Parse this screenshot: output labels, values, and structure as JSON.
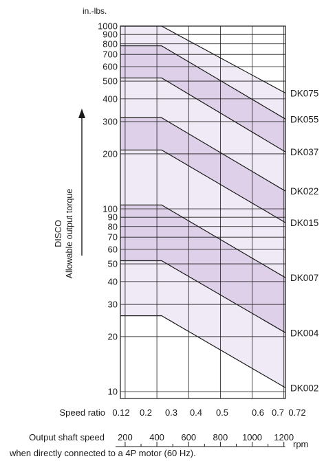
{
  "chart_data": {
    "type": "line",
    "title": "",
    "y_unit": "in.-lbs.",
    "ylabel_line1": "DISCO",
    "ylabel_line2": "Allowable output torque",
    "y_scale": "log",
    "ylim": [
      10,
      1000
    ],
    "y_ticks": [
      10,
      20,
      30,
      40,
      50,
      60,
      70,
      80,
      90,
      100,
      200,
      300,
      400,
      500,
      600,
      700,
      800,
      900,
      1000
    ],
    "x_label_ratio": "Speed ratio",
    "x_ratio_ticks": [
      "0.12",
      "0.2",
      "0.3",
      "0.4",
      "0.5",
      "0.6",
      "0.7",
      "0.72"
    ],
    "x_label_speed": "Output shaft speed",
    "x_speed_ticks": [
      200,
      400,
      600,
      800,
      1000,
      1200
    ],
    "x_speed_unit": "rpm",
    "x_note": "when directly connected to a 4P motor (60 Hz).",
    "xlim": [
      170,
      1210
    ],
    "grid": true,
    "series": [
      {
        "name": "DK075",
        "points": [
          [
            170,
            1000
          ],
          [
            430,
            1000
          ],
          [
            1210,
            430
          ]
        ]
      },
      {
        "name": "DK055",
        "points": [
          [
            170,
            780
          ],
          [
            430,
            780
          ],
          [
            1210,
            310
          ]
        ]
      },
      {
        "name": "DK037",
        "points": [
          [
            170,
            520
          ],
          [
            430,
            520
          ],
          [
            1210,
            205
          ]
        ]
      },
      {
        "name": "DK022",
        "points": [
          [
            170,
            315
          ],
          [
            430,
            315
          ],
          [
            1210,
            125
          ]
        ]
      },
      {
        "name": "DK015",
        "points": [
          [
            170,
            210
          ],
          [
            430,
            210
          ],
          [
            1210,
            84
          ]
        ]
      },
      {
        "name": "DK007",
        "points": [
          [
            170,
            105
          ],
          [
            430,
            105
          ],
          [
            1210,
            42
          ]
        ]
      },
      {
        "name": "DK004",
        "points": [
          [
            170,
            52
          ],
          [
            430,
            52
          ],
          [
            1210,
            21
          ]
        ]
      },
      {
        "name": "DK002",
        "points": [
          [
            170,
            26
          ],
          [
            430,
            26
          ],
          [
            1210,
            10.5
          ]
        ]
      }
    ],
    "fill_light": "#efeaf5",
    "fill_dark": "#ddd0e8"
  }
}
